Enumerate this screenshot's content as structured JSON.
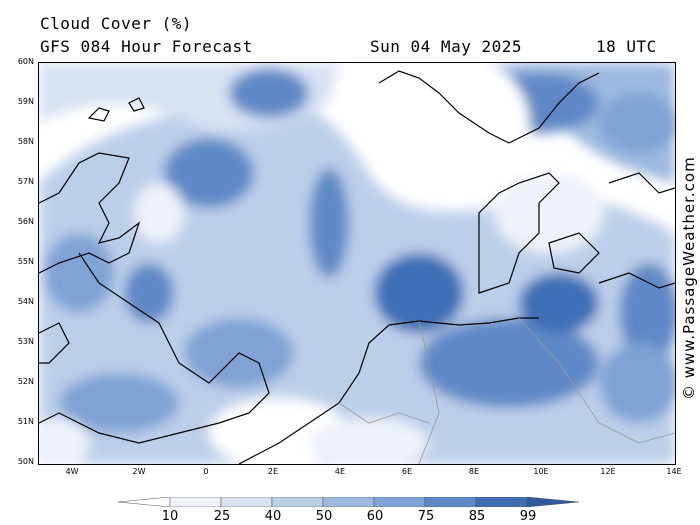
{
  "header": {
    "line1": "Cloud Cover (%)",
    "line2": "GFS 084 Hour Forecast",
    "date": "Sun 04 May 2025",
    "time": "18 UTC"
  },
  "map": {
    "lat_labels": [
      "60N",
      "59N",
      "58N",
      "57N",
      "56N",
      "55N",
      "54N",
      "53N",
      "52N",
      "51N",
      "50N"
    ],
    "lon_labels": [
      "4W",
      "2W",
      "0",
      "2E",
      "4E",
      "6E",
      "8E",
      "10E",
      "12E",
      "14E"
    ],
    "lat_range": [
      50,
      60
    ],
    "lon_range": [
      -5,
      14
    ]
  },
  "credit": "© www.PassageWeather.com",
  "legend": {
    "levels": [
      "10",
      "25",
      "40",
      "50",
      "60",
      "75",
      "85",
      "99"
    ],
    "colors": [
      "#ffffff",
      "#eef2f9",
      "#d7e2f2",
      "#bccfe9",
      "#9db9df",
      "#7fa3d4",
      "#5f89c6",
      "#3e6fb6",
      "#2f5b9c"
    ]
  }
}
